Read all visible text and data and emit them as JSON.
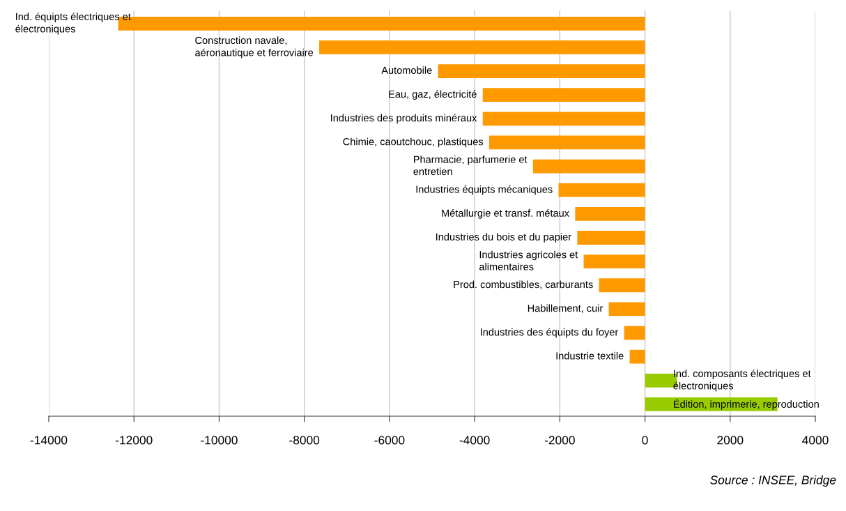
{
  "chart_data": {
    "type": "bar",
    "orientation": "horizontal",
    "categories": [
      "Ind. équipts électriques et\nélectroniques",
      "Construction navale,\naéronautique et ferroviaire",
      "Automobile",
      "Eau, gaz, électricité",
      "Industries des produits minéraux",
      "Chimie, caoutchouc, plastiques",
      "Pharmacie, parfumerie et\nentretien",
      "Industries équipts mécaniques",
      "Métallurgie et transf. métaux",
      "Industries du bois et du papier",
      "Industries agricoles et\nalimentaires",
      "Prod. combustibles, carburants",
      "Habillement, cuir",
      "Industries des équipts du foyer",
      "Industrie textile",
      "Ind. composants électriques et\nélectroniques",
      "Édition, imprimerie, reproduction"
    ],
    "values": [
      -12370,
      -7650,
      -4860,
      -3810,
      -3810,
      -3660,
      -2630,
      -2030,
      -1640,
      -1590,
      -1440,
      -1080,
      -850,
      -490,
      -360,
      750,
      3110
    ],
    "colors": [
      "#ff9900",
      "#ff9900",
      "#ff9900",
      "#ff9900",
      "#ff9900",
      "#ff9900",
      "#ff9900",
      "#ff9900",
      "#ff9900",
      "#ff9900",
      "#ff9900",
      "#ff9900",
      "#ff9900",
      "#ff9900",
      "#ff9900",
      "#99cc00",
      "#99cc00"
    ],
    "xlim": [
      -14000,
      4000
    ],
    "xticks": [
      -14000,
      -12000,
      -10000,
      -8000,
      -6000,
      -4000,
      -2000,
      0,
      2000,
      4000
    ],
    "grid": "x",
    "annotations": [
      "Source : INSEE, Bridge"
    ]
  }
}
